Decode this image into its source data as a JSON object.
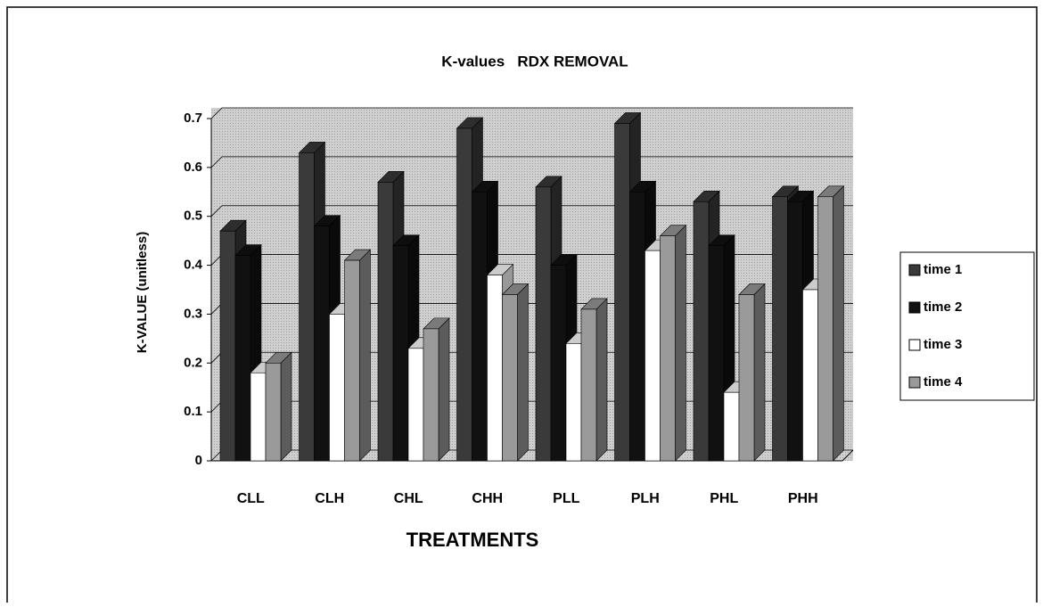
{
  "chart_data": {
    "type": "bar3d",
    "title": "K-values   RDX REMOVAL",
    "x_label": "TREATMENTS",
    "y_label": "K-VALUE (unitless)",
    "categories": [
      "CLL",
      "CLH",
      "CHL",
      "CHH",
      "PLL",
      "PLH",
      "PHL",
      "PHH"
    ],
    "series": [
      {
        "name": "time 1",
        "color": "#3a3a3a",
        "values": [
          0.47,
          0.63,
          0.57,
          0.68,
          0.56,
          0.69,
          0.53,
          0.54
        ]
      },
      {
        "name": "time 2",
        "color": "#111111",
        "values": [
          0.42,
          0.48,
          0.44,
          0.55,
          0.4,
          0.55,
          0.44,
          0.53
        ]
      },
      {
        "name": "time 3",
        "color": "#ffffff",
        "values": [
          0.18,
          0.3,
          0.23,
          0.38,
          0.24,
          0.43,
          0.14,
          0.35
        ]
      },
      {
        "name": "time 4",
        "color": "#9a9a9a",
        "values": [
          0.2,
          0.41,
          0.27,
          0.34,
          0.31,
          0.46,
          0.34,
          0.54
        ]
      }
    ],
    "ylim": [
      0,
      0.7
    ],
    "yticks": [
      0,
      0.1,
      0.2,
      0.3,
      0.4,
      0.5,
      0.6,
      0.7
    ],
    "grid": true,
    "legend": "right"
  }
}
